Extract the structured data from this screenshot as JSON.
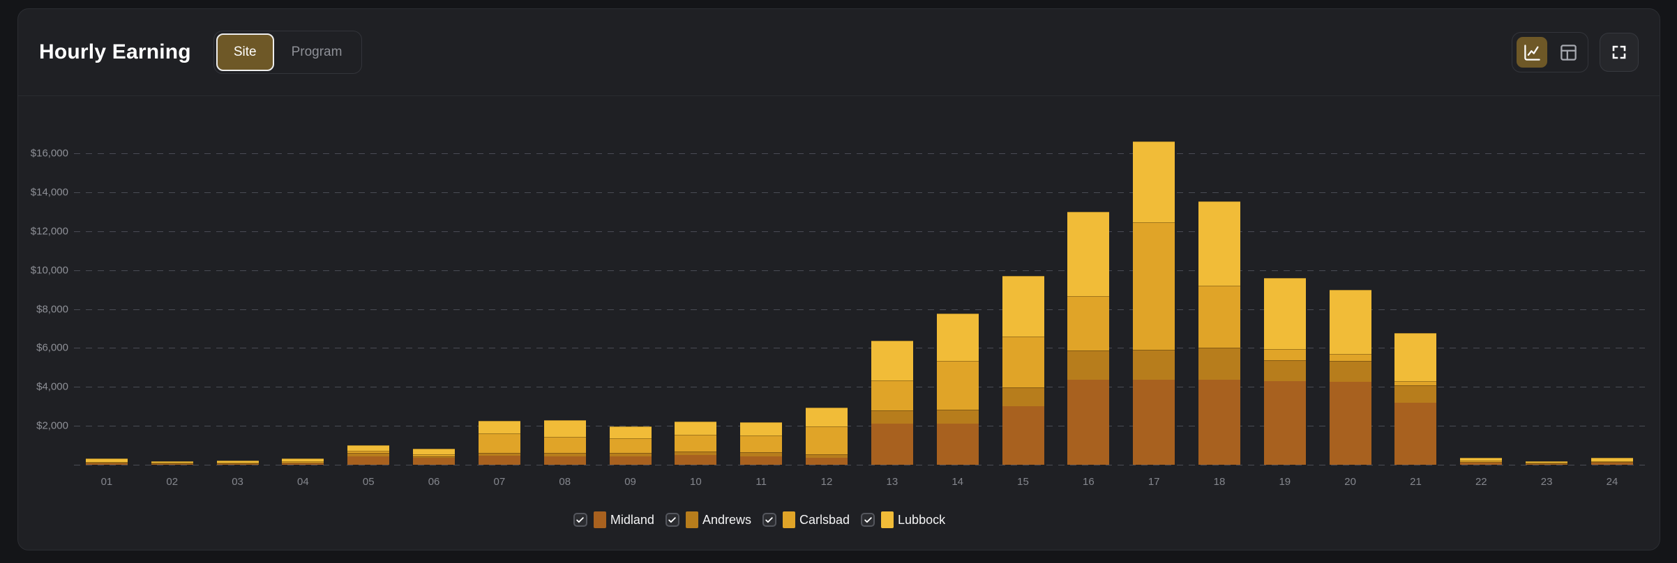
{
  "header": {
    "title": "Hourly Earning",
    "tabs": [
      {
        "label": "Site",
        "active": true
      },
      {
        "label": "Program",
        "active": false
      }
    ],
    "view_toggle": [
      {
        "name": "chart-view",
        "icon": "line-chart-icon",
        "active": true
      },
      {
        "name": "table-view",
        "icon": "table-icon",
        "active": false
      }
    ],
    "fullscreen": {
      "icon": "fullscreen-icon"
    }
  },
  "colors": {
    "page_bg": "#141518",
    "panel_bg": "#1F2024",
    "panel_border": "#2C2E33",
    "grid_dash": "#4A4C55",
    "axis_text": "#8E9097",
    "active_gold_bg": "#6E5827",
    "series": {
      "Midland": "#A8611F",
      "Andrews": "#B77D1C",
      "Carlsbad": "#E0A428",
      "Lubbock": "#F1BC38"
    }
  },
  "chart_data": {
    "type": "bar",
    "stacked": true,
    "title": "Hourly Earning",
    "xlabel": "",
    "ylabel": "",
    "ylim": [
      0,
      18000
    ],
    "ytick_step": 2000,
    "yticks_labeled": [
      "$2,000",
      "$4,000",
      "$6,000",
      "$8,000",
      "$10,000",
      "$12,000",
      "$14,000",
      "$16,000"
    ],
    "grid": "horizontal-dashed",
    "legend_position": "bottom",
    "categories": [
      "01",
      "02",
      "03",
      "04",
      "05",
      "06",
      "07",
      "08",
      "09",
      "10",
      "11",
      "12",
      "13",
      "14",
      "15",
      "16",
      "17",
      "18",
      "19",
      "20",
      "21",
      "22",
      "23",
      "24"
    ],
    "series": [
      {
        "name": "Midland",
        "color": "#A8611F",
        "values": [
          90,
          40,
          50,
          90,
          430,
          360,
          460,
          430,
          430,
          500,
          430,
          360,
          2100,
          2110,
          3000,
          4360,
          4360,
          4360,
          4290,
          4250,
          3180,
          120,
          50,
          110
        ]
      },
      {
        "name": "Andrews",
        "color": "#B77D1C",
        "values": [
          20,
          10,
          15,
          20,
          170,
          70,
          140,
          180,
          180,
          180,
          215,
          180,
          710,
          715,
          965,
          1500,
          1540,
          1640,
          1070,
          1070,
          890,
          40,
          15,
          40
        ]
      },
      {
        "name": "Carlsbad",
        "color": "#E0A428",
        "values": [
          30,
          20,
          25,
          40,
          110,
          105,
          1000,
          820,
          750,
          860,
          860,
          1430,
          1540,
          2500,
          2610,
          2790,
          6570,
          3210,
          570,
          360,
          215,
          40,
          20,
          47
        ]
      },
      {
        "name": "Lubbock",
        "color": "#F1BC38",
        "values": [
          150,
          80,
          90,
          170,
          290,
          285,
          650,
          860,
          605,
          680,
          680,
          960,
          2040,
          2460,
          3140,
          4360,
          4140,
          4320,
          3680,
          3290,
          2465,
          160,
          60,
          160
        ]
      }
    ],
    "legend": [
      {
        "label": "Midland",
        "checked": true
      },
      {
        "label": "Andrews",
        "checked": true
      },
      {
        "label": "Carlsbad",
        "checked": true
      },
      {
        "label": "Lubbock",
        "checked": true
      }
    ]
  }
}
